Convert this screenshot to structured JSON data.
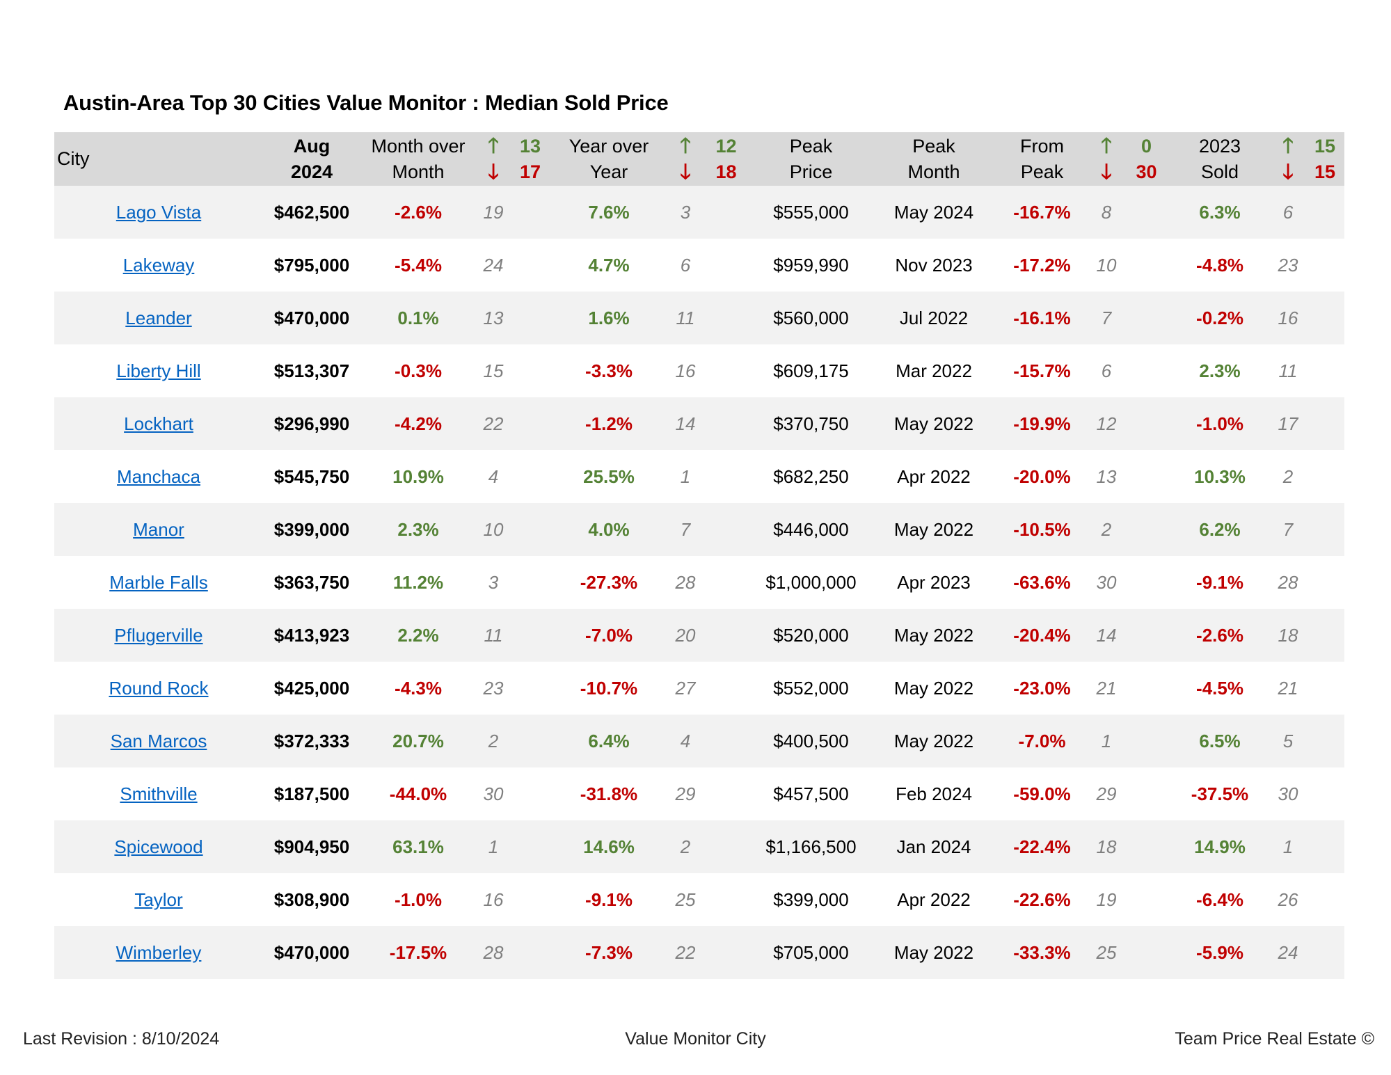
{
  "title": "Austin-Area Top 30 Cities Value Monitor : Median Sold Price",
  "header": {
    "city": "City",
    "aug_top": "Aug",
    "aug_bottom": "2024",
    "mom_top": "Month over",
    "mom_bottom": "Month",
    "mom_up": "13",
    "mom_down": "17",
    "yoy_top": "Year over",
    "yoy_bottom": "Year",
    "yoy_up": "12",
    "yoy_down": "18",
    "peak_price_top": "Peak",
    "peak_price_bottom": "Price",
    "peak_month_top": "Peak",
    "peak_month_bottom": "Month",
    "from_peak_top": "From",
    "from_peak_bottom": "Peak",
    "from_peak_up": "0",
    "from_peak_down": "30",
    "sold_top": "2023",
    "sold_bottom": "Sold",
    "sold_up": "15",
    "sold_down": "15",
    "up_arrow": "🡑",
    "down_arrow": "🡓"
  },
  "rows": [
    {
      "city": "Lago Vista",
      "price": "$462,500",
      "mom": "-2.6%",
      "mom_rank": "19",
      "yoy": "7.6%",
      "yoy_rank": "3",
      "peak_price": "$555,000",
      "peak_month": "May 2024",
      "from_peak": "-16.7%",
      "from_peak_rank": "8",
      "sold": "6.3%",
      "sold_rank": "6"
    },
    {
      "city": "Lakeway",
      "price": "$795,000",
      "mom": "-5.4%",
      "mom_rank": "24",
      "yoy": "4.7%",
      "yoy_rank": "6",
      "peak_price": "$959,990",
      "peak_month": "Nov 2023",
      "from_peak": "-17.2%",
      "from_peak_rank": "10",
      "sold": "-4.8%",
      "sold_rank": "23"
    },
    {
      "city": "Leander",
      "price": "$470,000",
      "mom": "0.1%",
      "mom_rank": "13",
      "yoy": "1.6%",
      "yoy_rank": "11",
      "peak_price": "$560,000",
      "peak_month": "Jul 2022",
      "from_peak": "-16.1%",
      "from_peak_rank": "7",
      "sold": "-0.2%",
      "sold_rank": "16"
    },
    {
      "city": "Liberty Hill",
      "price": "$513,307",
      "mom": "-0.3%",
      "mom_rank": "15",
      "yoy": "-3.3%",
      "yoy_rank": "16",
      "peak_price": "$609,175",
      "peak_month": "Mar 2022",
      "from_peak": "-15.7%",
      "from_peak_rank": "6",
      "sold": "2.3%",
      "sold_rank": "11"
    },
    {
      "city": "Lockhart",
      "price": "$296,990",
      "mom": "-4.2%",
      "mom_rank": "22",
      "yoy": "-1.2%",
      "yoy_rank": "14",
      "peak_price": "$370,750",
      "peak_month": "May 2022",
      "from_peak": "-19.9%",
      "from_peak_rank": "12",
      "sold": "-1.0%",
      "sold_rank": "17"
    },
    {
      "city": "Manchaca",
      "price": "$545,750",
      "mom": "10.9%",
      "mom_rank": "4",
      "yoy": "25.5%",
      "yoy_rank": "1",
      "peak_price": "$682,250",
      "peak_month": "Apr 2022",
      "from_peak": "-20.0%",
      "from_peak_rank": "13",
      "sold": "10.3%",
      "sold_rank": "2"
    },
    {
      "city": "Manor",
      "price": "$399,000",
      "mom": "2.3%",
      "mom_rank": "10",
      "yoy": "4.0%",
      "yoy_rank": "7",
      "peak_price": "$446,000",
      "peak_month": "May 2022",
      "from_peak": "-10.5%",
      "from_peak_rank": "2",
      "sold": "6.2%",
      "sold_rank": "7"
    },
    {
      "city": "Marble Falls",
      "price": "$363,750",
      "mom": "11.2%",
      "mom_rank": "3",
      "yoy": "-27.3%",
      "yoy_rank": "28",
      "peak_price": "$1,000,000",
      "peak_month": "Apr 2023",
      "from_peak": "-63.6%",
      "from_peak_rank": "30",
      "sold": "-9.1%",
      "sold_rank": "28"
    },
    {
      "city": "Pflugerville",
      "price": "$413,923",
      "mom": "2.2%",
      "mom_rank": "11",
      "yoy": "-7.0%",
      "yoy_rank": "20",
      "peak_price": "$520,000",
      "peak_month": "May 2022",
      "from_peak": "-20.4%",
      "from_peak_rank": "14",
      "sold": "-2.6%",
      "sold_rank": "18"
    },
    {
      "city": "Round Rock",
      "price": "$425,000",
      "mom": "-4.3%",
      "mom_rank": "23",
      "yoy": "-10.7%",
      "yoy_rank": "27",
      "peak_price": "$552,000",
      "peak_month": "May 2022",
      "from_peak": "-23.0%",
      "from_peak_rank": "21",
      "sold": "-4.5%",
      "sold_rank": "21"
    },
    {
      "city": "San Marcos",
      "price": "$372,333",
      "mom": "20.7%",
      "mom_rank": "2",
      "yoy": "6.4%",
      "yoy_rank": "4",
      "peak_price": "$400,500",
      "peak_month": "May 2022",
      "from_peak": "-7.0%",
      "from_peak_rank": "1",
      "sold": "6.5%",
      "sold_rank": "5"
    },
    {
      "city": "Smithville",
      "price": "$187,500",
      "mom": "-44.0%",
      "mom_rank": "30",
      "yoy": "-31.8%",
      "yoy_rank": "29",
      "peak_price": "$457,500",
      "peak_month": "Feb 2024",
      "from_peak": "-59.0%",
      "from_peak_rank": "29",
      "sold": "-37.5%",
      "sold_rank": "30"
    },
    {
      "city": "Spicewood",
      "price": "$904,950",
      "mom": "63.1%",
      "mom_rank": "1",
      "yoy": "14.6%",
      "yoy_rank": "2",
      "peak_price": "$1,166,500",
      "peak_month": "Jan 2024",
      "from_peak": "-22.4%",
      "from_peak_rank": "18",
      "sold": "14.9%",
      "sold_rank": "1"
    },
    {
      "city": "Taylor",
      "price": "$308,900",
      "mom": "-1.0%",
      "mom_rank": "16",
      "yoy": "-9.1%",
      "yoy_rank": "25",
      "peak_price": "$399,000",
      "peak_month": "Apr 2022",
      "from_peak": "-22.6%",
      "from_peak_rank": "19",
      "sold": "-6.4%",
      "sold_rank": "26"
    },
    {
      "city": "Wimberley",
      "price": "$470,000",
      "mom": "-17.5%",
      "mom_rank": "28",
      "yoy": "-7.3%",
      "yoy_rank": "22",
      "peak_price": "$705,000",
      "peak_month": "May 2022",
      "from_peak": "-33.3%",
      "from_peak_rank": "25",
      "sold": "-5.9%",
      "sold_rank": "24"
    }
  ],
  "footer": {
    "left": "Last Revision : 8/10/2024",
    "center": "Value Monitor City",
    "right": "Team Price Real Estate ©"
  },
  "colors": {
    "positive": "#548235",
    "negative": "#c00000",
    "link": "#0563c1",
    "header_bg": "#d9d9d9",
    "stripe_bg": "#f2f2f2"
  }
}
